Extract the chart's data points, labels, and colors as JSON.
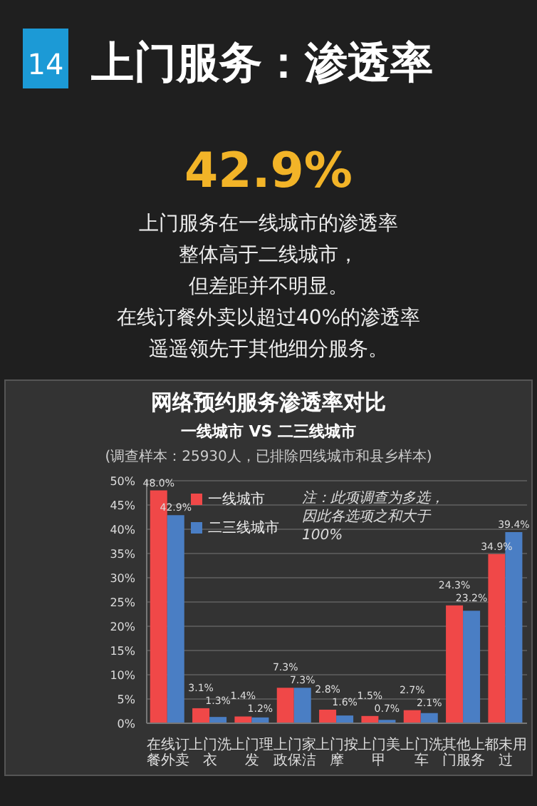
{
  "chart_data": {
    "type": "bar",
    "title": "网络预约服务渗透率对比",
    "subtitle": "一线城市 VS 二三线城市",
    "annotations": [
      "14",
      "上门服务：渗透率",
      "42.9%",
      "上门服务在一线城市的渗透率",
      "整体高于二线城市，",
      "但差距并不明显。",
      "在线订餐外卖以超过40%的渗透率",
      "遥遥领先于其他细分服务。",
      "(调查样本：25930人，已排除四线城市和县乡样本)",
      "注：此项调查为多选，因此各选项之和大于100%"
    ],
    "categories": [
      "在线订餐外卖",
      "上门洗衣",
      "上门理发",
      "上门家政保洁",
      "上门按摩",
      "上门美甲",
      "上门洗车",
      "其他上门服务",
      "都未用过"
    ],
    "series": [
      {
        "name": "一线城市",
        "color": "#f04848",
        "values": [
          48.0,
          3.1,
          1.4,
          7.3,
          2.8,
          1.5,
          2.7,
          24.3,
          34.9
        ],
        "value_labels": [
          "48.0%",
          "3.1%",
          "1.4%",
          "7.3%",
          "2.8%",
          "1.5%",
          "2.7%",
          "24.3%",
          "34.9%"
        ]
      },
      {
        "name": "二三线城市",
        "color": "#4a7ec4",
        "values": [
          42.9,
          1.3,
          1.2,
          7.3,
          1.6,
          0.7,
          2.1,
          23.2,
          39.4
        ],
        "value_labels": [
          "42.9%",
          "1.3%",
          "1.2%",
          "7.3%",
          "1.6%",
          "0.7%",
          "2.1%",
          "23.2%",
          "39.4%"
        ]
      }
    ],
    "ylim": [
      0,
      50
    ],
    "yticks": [
      {
        "value": 0,
        "label": "0%"
      },
      {
        "value": 5,
        "label": "5%"
      },
      {
        "value": 10,
        "label": "10%"
      },
      {
        "value": 15,
        "label": "15%"
      },
      {
        "value": 20,
        "label": "20%"
      },
      {
        "value": 25,
        "label": "25%"
      },
      {
        "value": 30,
        "label": "30%"
      },
      {
        "value": 35,
        "label": "35%"
      },
      {
        "value": 40,
        "label": "40%"
      },
      {
        "value": 45,
        "label": "45%"
      },
      {
        "value": 50,
        "label": "50%"
      }
    ],
    "grid": "y",
    "legend": "top",
    "marker": "square"
  }
}
